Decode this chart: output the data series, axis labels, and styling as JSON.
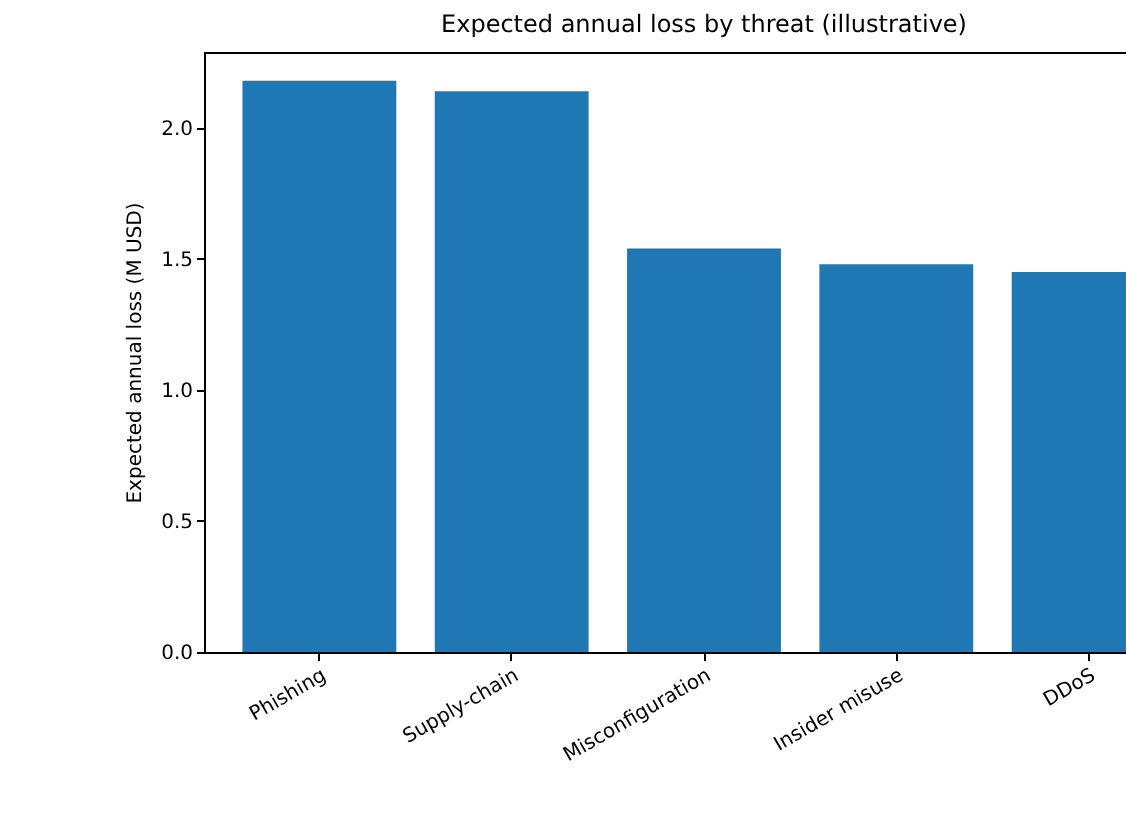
{
  "chart_data": {
    "type": "bar",
    "title": "Expected annual loss by threat (illustrative)",
    "ylabel": "Expected annual loss (M USD)",
    "categories": [
      "Phishing",
      "Supply-chain",
      "Misconfiguration",
      "Insider misuse",
      "DDoS"
    ],
    "values": [
      2.18,
      2.14,
      1.54,
      1.48,
      1.45
    ],
    "color": "#1f77b4",
    "ylim": [
      0,
      2.29
    ],
    "yticks": [
      {
        "value": 0,
        "label": "0.0"
      },
      0.5,
      {
        "value": 1,
        "label": "1.0"
      },
      1.5,
      {
        "value": 2,
        "label": "2.0"
      }
    ],
    "grid": false
  }
}
